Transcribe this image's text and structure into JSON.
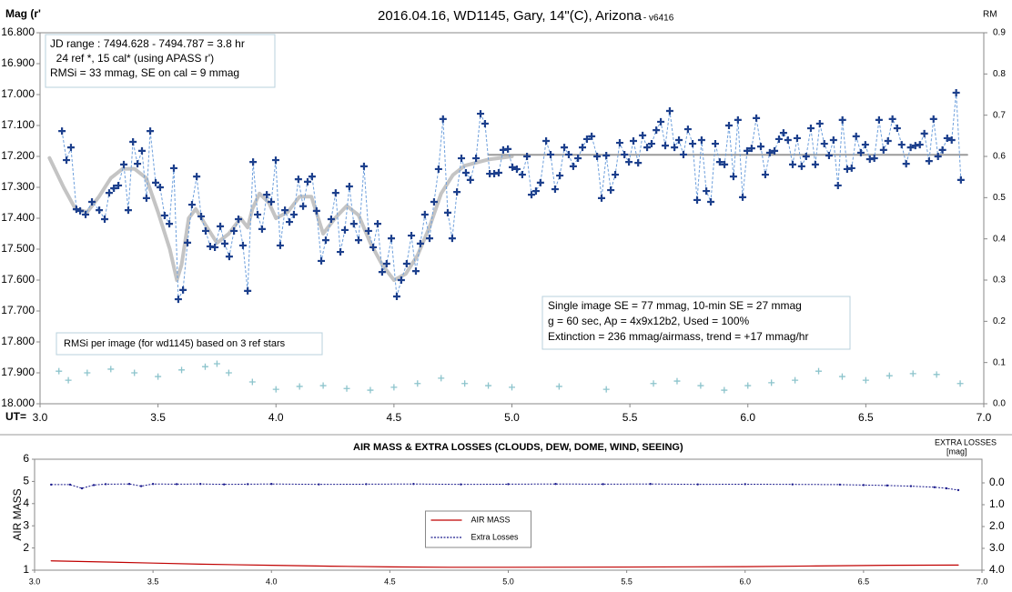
{
  "chart_data": [
    {
      "type": "line",
      "title": "2016.04.16,  WD1145, Gary, 14\"(C), Arizona",
      "title_suffix": " - v6416",
      "y_label": "Mag (r'",
      "y2_label": "RM",
      "x_label": "UT=",
      "xlim": [
        3.0,
        7.0
      ],
      "xticks": [
        {
          "value": 3.0,
          "label": "3.0"
        },
        {
          "value": 3.5,
          "label": "3.5"
        },
        {
          "value": 4.0,
          "label": "4.0"
        },
        {
          "value": 4.5,
          "label": "4.5"
        },
        {
          "value": 5.0,
          "label": "5.0"
        },
        {
          "value": 5.5,
          "label": "5.5"
        },
        {
          "value": 6.0,
          "label": "6.0"
        },
        {
          "value": 6.5,
          "label": "6.5"
        },
        {
          "value": 7.0,
          "label": "7.0"
        }
      ],
      "ylim": [
        16.8,
        18.0
      ],
      "y_inverted": true,
      "yticks": [
        {
          "value": 16.8,
          "label": "16.800"
        },
        {
          "value": 16.9,
          "label": "16.900"
        },
        {
          "value": 17.0,
          "label": "17.000"
        },
        {
          "value": 17.1,
          "label": "17.100"
        },
        {
          "value": 17.2,
          "label": "17.200"
        },
        {
          "value": 17.3,
          "label": "17.300"
        },
        {
          "value": 17.4,
          "label": "17.400"
        },
        {
          "value": 17.5,
          "label": "17.500"
        },
        {
          "value": 17.6,
          "label": "17.600"
        },
        {
          "value": 17.7,
          "label": "17.700"
        },
        {
          "value": 17.8,
          "label": "17.800"
        },
        {
          "value": 17.9,
          "label": "17.900"
        },
        {
          "value": 18.0,
          "label": "18.000"
        }
      ],
      "y2lim": [
        0.0,
        0.9
      ],
      "y2ticks": [
        {
          "value": 0.0,
          "label": "0.0"
        },
        {
          "value": 0.1,
          "label": "0.1"
        },
        {
          "value": 0.2,
          "label": "0.2"
        },
        {
          "value": 0.3,
          "label": "0.3"
        },
        {
          "value": 0.4,
          "label": "0.4"
        },
        {
          "value": 0.5,
          "label": "0.5"
        },
        {
          "value": 0.6,
          "label": "0.6"
        },
        {
          "value": 0.7,
          "label": "0.7"
        },
        {
          "value": 0.8,
          "label": "0.8"
        },
        {
          "value": 0.9,
          "label": "0.9"
        }
      ],
      "grid": false,
      "annotations": [
        {
          "lines": [
            "JD range  : 7494.628 - 7494.787 = 3.8 hr",
            "  24 ref *, 15 cal* (using APASS r')",
            "RMSi = 33 mmag, SE on cal = 9 mmag"
          ]
        },
        {
          "lines": [
            "Single image SE = 77 mmag, 10-min SE = 27 mmag",
            "g = 60 sec, Ap = 4x9x12b2, Used = 100%",
            "Extinction = 236 mmag/airmass, trend = +17 mmag/hr"
          ]
        },
        {
          "lines": [
            "RMSi per image (for wd1145) based on 3 ref stars"
          ]
        }
      ],
      "series": [
        {
          "style": "line",
          "color": "#c4c4c4",
          "width": 4,
          "x": [
            3.04,
            3.1,
            3.15,
            3.2,
            3.25,
            3.3,
            3.35,
            3.4,
            3.45,
            3.5,
            3.55,
            3.58,
            3.6,
            3.63,
            3.66,
            3.7,
            3.75,
            3.8,
            3.85,
            3.88,
            3.9,
            3.93,
            3.97,
            4.0,
            4.05,
            4.1,
            4.15,
            4.2,
            4.25,
            4.3,
            4.35,
            4.4,
            4.45,
            4.5,
            4.55,
            4.6,
            4.65,
            4.7,
            4.75,
            4.8,
            4.9,
            5.0
          ],
          "values": [
            17.205,
            17.3,
            17.37,
            17.38,
            17.33,
            17.27,
            17.24,
            17.24,
            17.27,
            17.38,
            17.5,
            17.6,
            17.55,
            17.4,
            17.37,
            17.42,
            17.48,
            17.45,
            17.4,
            17.43,
            17.37,
            17.32,
            17.35,
            17.4,
            17.38,
            17.33,
            17.33,
            17.45,
            17.4,
            17.36,
            17.39,
            17.48,
            17.55,
            17.6,
            17.58,
            17.52,
            17.43,
            17.32,
            17.26,
            17.23,
            17.21,
            17.2
          ]
        },
        {
          "style": "line",
          "color": "#9a9a9a",
          "width": 2,
          "x": [
            4.9,
            6.93
          ],
          "values": [
            17.195,
            17.195
          ]
        },
        {
          "style": "plus-dashed",
          "color": "#1c3f8c",
          "line_color": "#6d9fdc",
          "x": [
            3.093,
            3.112,
            3.131,
            3.154,
            3.17,
            3.193,
            3.22,
            3.251,
            3.274,
            3.293,
            3.313,
            3.332,
            3.355,
            3.374,
            3.394,
            3.413,
            3.432,
            3.451,
            3.467,
            3.49,
            3.509,
            3.528,
            3.548,
            3.567,
            3.586,
            3.606,
            3.625,
            3.644,
            3.664,
            3.683,
            3.702,
            3.721,
            3.741,
            3.764,
            3.783,
            3.802,
            3.822,
            3.841,
            3.86,
            3.88,
            3.903,
            3.922,
            3.941,
            3.961,
            3.98,
            3.999,
            4.018,
            4.038,
            4.057,
            4.076,
            4.095,
            4.115,
            4.134,
            4.153,
            4.172,
            4.192,
            4.211,
            4.234,
            4.253,
            4.273,
            4.292,
            4.311,
            4.33,
            4.35,
            4.373,
            4.392,
            4.412,
            4.431,
            4.45,
            4.469,
            4.489,
            4.512,
            4.531,
            4.554,
            4.574,
            4.593,
            4.612,
            4.631,
            4.651,
            4.67,
            4.689,
            4.708,
            4.728,
            4.747,
            4.767,
            4.786,
            4.805,
            4.824,
            4.848,
            4.867,
            4.886,
            4.906,
            4.925,
            4.944,
            4.963,
            4.983,
            5.002,
            5.021,
            5.044,
            5.064,
            5.083,
            5.102,
            5.121,
            5.145,
            5.164,
            5.183,
            5.203,
            5.222,
            5.241,
            5.26,
            5.28,
            5.299,
            5.318,
            5.338,
            5.361,
            5.38,
            5.4,
            5.419,
            5.438,
            5.457,
            5.477,
            5.496,
            5.515,
            5.535,
            5.554,
            5.573,
            5.592,
            5.612,
            5.631,
            5.65,
            5.669,
            5.689,
            5.708,
            5.727,
            5.746,
            5.766,
            5.785,
            5.804,
            5.824,
            5.843,
            5.862,
            5.881,
            5.901,
            5.92,
            5.939,
            5.958,
            5.978,
            5.997,
            6.016,
            6.036,
            6.055,
            6.074,
            6.093,
            6.113,
            6.132,
            6.151,
            6.17,
            6.19,
            6.209,
            6.228,
            6.247,
            6.267,
            6.286,
            6.305,
            6.324,
            6.344,
            6.363,
            6.382,
            6.401,
            6.421,
            6.44,
            6.459,
            6.479,
            6.498,
            6.517,
            6.536,
            6.556,
            6.575,
            6.594,
            6.613,
            6.633,
            6.652,
            6.671,
            6.69,
            6.71,
            6.729,
            6.748,
            6.768,
            6.787,
            6.806,
            6.825,
            6.845,
            6.864,
            6.883,
            6.903
          ],
          "values": [
            17.118,
            17.212,
            17.171,
            17.371,
            17.376,
            17.388,
            17.347,
            17.374,
            17.403,
            17.318,
            17.303,
            17.294,
            17.226,
            17.374,
            17.153,
            17.224,
            17.182,
            17.335,
            17.118,
            17.285,
            17.3,
            17.391,
            17.418,
            17.238,
            17.662,
            17.632,
            17.479,
            17.356,
            17.265,
            17.394,
            17.441,
            17.491,
            17.494,
            17.426,
            17.482,
            17.524,
            17.441,
            17.403,
            17.488,
            17.635,
            17.218,
            17.388,
            17.435,
            17.324,
            17.347,
            17.212,
            17.488,
            17.374,
            17.412,
            17.388,
            17.274,
            17.361,
            17.282,
            17.265,
            17.376,
            17.538,
            17.471,
            17.403,
            17.318,
            17.509,
            17.438,
            17.297,
            17.418,
            17.471,
            17.232,
            17.441,
            17.494,
            17.418,
            17.574,
            17.547,
            17.465,
            17.653,
            17.6,
            17.547,
            17.456,
            17.571,
            17.482,
            17.388,
            17.465,
            17.347,
            17.241,
            17.079,
            17.382,
            17.465,
            17.315,
            17.206,
            17.253,
            17.276,
            17.206,
            17.062,
            17.094,
            17.256,
            17.256,
            17.253,
            17.179,
            17.176,
            17.235,
            17.241,
            17.259,
            17.2,
            17.324,
            17.312,
            17.285,
            17.15,
            17.194,
            17.306,
            17.262,
            17.171,
            17.194,
            17.232,
            17.206,
            17.171,
            17.144,
            17.135,
            17.2,
            17.335,
            17.197,
            17.309,
            17.259,
            17.156,
            17.194,
            17.218,
            17.15,
            17.221,
            17.132,
            17.171,
            17.159,
            17.115,
            17.088,
            17.165,
            17.053,
            17.171,
            17.147,
            17.194,
            17.112,
            17.159,
            17.341,
            17.147,
            17.312,
            17.347,
            17.159,
            17.218,
            17.226,
            17.1,
            17.265,
            17.082,
            17.332,
            17.182,
            17.174,
            17.076,
            17.168,
            17.259,
            17.188,
            17.182,
            17.144,
            17.124,
            17.147,
            17.226,
            17.141,
            17.232,
            17.2,
            17.109,
            17.226,
            17.094,
            17.159,
            17.197,
            17.147,
            17.294,
            17.082,
            17.241,
            17.238,
            17.135,
            17.188,
            17.162,
            17.209,
            17.206,
            17.082,
            17.179,
            17.15,
            17.079,
            17.109,
            17.162,
            17.224,
            17.171,
            17.165,
            17.162,
            17.126,
            17.215,
            17.079,
            17.2,
            17.179,
            17.141,
            17.147,
            16.994,
            17.276
          ]
        },
        {
          "style": "plus",
          "color": "#8cc4cc",
          "axis": "y2",
          "x": [
            3.08,
            3.12,
            3.2,
            3.3,
            3.4,
            3.5,
            3.6,
            3.7,
            3.75,
            3.8,
            3.9,
            4.0,
            4.1,
            4.2,
            4.3,
            4.4,
            4.5,
            4.6,
            4.7,
            4.8,
            4.9,
            5.0,
            5.2,
            5.4,
            5.6,
            5.7,
            5.8,
            5.9,
            6.0,
            6.1,
            6.2,
            6.3,
            6.4,
            6.5,
            6.6,
            6.7,
            6.8,
            6.9
          ],
          "values": [
            0.079,
            0.057,
            0.075,
            0.084,
            0.075,
            0.066,
            0.082,
            0.09,
            0.097,
            0.075,
            0.053,
            0.035,
            0.042,
            0.044,
            0.037,
            0.033,
            0.04,
            0.049,
            0.062,
            0.049,
            0.044,
            0.04,
            0.042,
            0.035,
            0.049,
            0.055,
            0.044,
            0.033,
            0.044,
            0.051,
            0.057,
            0.079,
            0.066,
            0.057,
            0.068,
            0.073,
            0.071,
            0.049
          ]
        }
      ]
    },
    {
      "type": "line",
      "title": "AIR MASS & EXTRA LOSSES (CLOUDS, DEW, DOME, WIND, SEEING)",
      "y_label": "AIR MASS",
      "y2_label": [
        "EXTRA LOSSES",
        "[mag]"
      ],
      "xlim": [
        3.0,
        7.0
      ],
      "xticks": [
        {
          "value": 3.0,
          "label": "3.0"
        },
        {
          "value": 3.5,
          "label": "3.5"
        },
        {
          "value": 4.0,
          "label": "4.0"
        },
        {
          "value": 4.5,
          "label": "4.5"
        },
        {
          "value": 5.0,
          "label": "5.0"
        },
        {
          "value": 5.5,
          "label": "5.5"
        },
        {
          "value": 6.0,
          "label": "6.0"
        },
        {
          "value": 6.5,
          "label": "6.5"
        },
        {
          "value": 7.0,
          "label": "7.0"
        }
      ],
      "ylim": [
        1,
        6
      ],
      "yticks": [
        1,
        2,
        3,
        4,
        5,
        6
      ],
      "y2lim": [
        -1.083,
        4.0
      ],
      "y2_inverted": true,
      "y2ticks": [
        {
          "value": 0.0,
          "label": "0.0"
        },
        {
          "value": 1.0,
          "label": "1.0"
        },
        {
          "value": 2.0,
          "label": "2.0"
        },
        {
          "value": 3.0,
          "label": "3.0"
        },
        {
          "value": 4.0,
          "label": "4.0"
        }
      ],
      "grid": false,
      "legend": "center",
      "series": [
        {
          "name": "AIR MASS",
          "style": "line",
          "color": "#c00000",
          "width": 1.2,
          "x": [
            3.07,
            3.3,
            3.5,
            3.7,
            4.0,
            4.25,
            4.5,
            4.75,
            5.0,
            5.5,
            6.0,
            6.3,
            6.6,
            6.9
          ],
          "values": [
            1.42,
            1.37,
            1.32,
            1.27,
            1.22,
            1.18,
            1.15,
            1.13,
            1.13,
            1.14,
            1.16,
            1.19,
            1.22,
            1.23
          ]
        },
        {
          "name": "Extra Losses",
          "style": "dot-dashed",
          "color": "#1a1a8c",
          "axis": "y2",
          "x": [
            3.07,
            3.15,
            3.2,
            3.25,
            3.3,
            3.4,
            3.45,
            3.5,
            3.6,
            3.7,
            3.8,
            3.9,
            4.0,
            4.2,
            4.4,
            4.6,
            4.8,
            5.0,
            5.2,
            5.4,
            5.6,
            5.8,
            6.0,
            6.2,
            6.4,
            6.5,
            6.6,
            6.7,
            6.8,
            6.85,
            6.9
          ],
          "values": [
            0.08,
            0.08,
            0.25,
            0.1,
            0.06,
            0.05,
            0.15,
            0.05,
            0.06,
            0.05,
            0.07,
            0.06,
            0.05,
            0.07,
            0.06,
            0.05,
            0.07,
            0.06,
            0.05,
            0.06,
            0.05,
            0.07,
            0.06,
            0.07,
            0.08,
            0.1,
            0.12,
            0.15,
            0.2,
            0.25,
            0.33
          ]
        }
      ]
    }
  ]
}
